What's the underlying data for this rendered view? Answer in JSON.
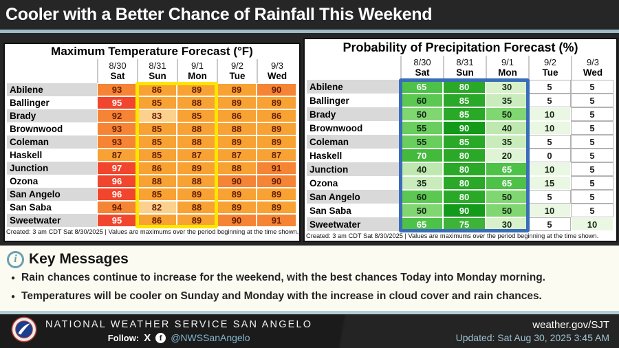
{
  "page_title": "Cooler with a Better Chance of Rainfall This Weekend",
  "chart_data": [
    {
      "type": "table",
      "id": "temp",
      "title": "Maximum Temperature Forecast (°F)",
      "columns": [
        {
          "date": "8/30",
          "day": "Sat"
        },
        {
          "date": "8/31",
          "day": "Sun"
        },
        {
          "date": "9/1",
          "day": "Mon"
        },
        {
          "date": "9/2",
          "day": "Tue"
        },
        {
          "date": "9/3",
          "day": "Wed"
        }
      ],
      "rows": [
        {
          "city": "Abilene",
          "values": [
            93,
            86,
            89,
            89,
            90
          ]
        },
        {
          "city": "Ballinger",
          "values": [
            95,
            85,
            88,
            89,
            89
          ]
        },
        {
          "city": "Brady",
          "values": [
            92,
            83,
            85,
            86,
            86
          ]
        },
        {
          "city": "Brownwood",
          "values": [
            93,
            85,
            88,
            88,
            89
          ]
        },
        {
          "city": "Coleman",
          "values": [
            93,
            85,
            88,
            89,
            89
          ]
        },
        {
          "city": "Haskell",
          "values": [
            87,
            85,
            87,
            87,
            87
          ]
        },
        {
          "city": "Junction",
          "values": [
            97,
            86,
            89,
            88,
            91
          ]
        },
        {
          "city": "Ozona",
          "values": [
            96,
            88,
            88,
            90,
            90
          ]
        },
        {
          "city": "San Angelo",
          "values": [
            96,
            85,
            89,
            89,
            89
          ]
        },
        {
          "city": "San Saba",
          "values": [
            94,
            82,
            88,
            89,
            89
          ]
        },
        {
          "city": "Sweetwater",
          "values": [
            95,
            86,
            89,
            90,
            91
          ]
        }
      ],
      "footnote": "Created: 3 am CDT Sat 8/30/2025  |  Values are maximums over the period beginning at the time shown.",
      "scale": "temp",
      "highlight": {
        "color": "#ffe500",
        "columns": [
          "Sun",
          "Mon"
        ]
      }
    },
    {
      "type": "table",
      "id": "pop",
      "title": "Probability of Precipitation Forecast (%)",
      "columns": [
        {
          "date": "8/30",
          "day": "Sat"
        },
        {
          "date": "8/31",
          "day": "Sun"
        },
        {
          "date": "9/1",
          "day": "Mon"
        },
        {
          "date": "9/2",
          "day": "Tue"
        },
        {
          "date": "9/3",
          "day": "Wed"
        }
      ],
      "rows": [
        {
          "city": "Abilene",
          "values": [
            65,
            80,
            30,
            5,
            5
          ]
        },
        {
          "city": "Ballinger",
          "values": [
            60,
            85,
            35,
            5,
            5
          ]
        },
        {
          "city": "Brady",
          "values": [
            50,
            85,
            50,
            10,
            5
          ]
        },
        {
          "city": "Brownwood",
          "values": [
            55,
            90,
            40,
            10,
            5
          ]
        },
        {
          "city": "Coleman",
          "values": [
            55,
            85,
            35,
            5,
            5
          ]
        },
        {
          "city": "Haskell",
          "values": [
            70,
            80,
            20,
            0,
            5
          ]
        },
        {
          "city": "Junction",
          "values": [
            40,
            80,
            65,
            10,
            5
          ]
        },
        {
          "city": "Ozona",
          "values": [
            35,
            80,
            65,
            15,
            5
          ]
        },
        {
          "city": "San Angelo",
          "values": [
            60,
            80,
            50,
            5,
            5
          ]
        },
        {
          "city": "San Saba",
          "values": [
            50,
            90,
            50,
            10,
            5
          ]
        },
        {
          "city": "Sweetwater",
          "values": [
            65,
            75,
            30,
            5,
            10
          ]
        }
      ],
      "footnote": "Created: 3 am CDT Sat 8/30/2025  |  Values are maximums over the period beginning at the time shown.",
      "scale": "pop",
      "highlight": {
        "color": "#3a6db8",
        "columns": [
          "Sat",
          "Sun",
          "Mon"
        ]
      }
    }
  ],
  "scales": {
    "temp": [
      {
        "min": 95,
        "bg": "#f2452d",
        "text": "#ffffff"
      },
      {
        "min": 90,
        "bg": "#f58434",
        "text": "#641e02"
      },
      {
        "min": 84,
        "bg": "#f8a233",
        "text": "#641e02"
      },
      {
        "min": 0,
        "bg": "#fcd08d",
        "text": "#641e02"
      }
    ],
    "pop": [
      {
        "min": 90,
        "bg": "#149a1a",
        "text": "#ffffff"
      },
      {
        "min": 80,
        "bg": "#2aa827",
        "text": "#ffffff"
      },
      {
        "min": 75,
        "bg": "#3db338",
        "text": "#ffffff"
      },
      {
        "min": 70,
        "bg": "#44ba3d",
        "text": "#ffffff"
      },
      {
        "min": 65,
        "bg": "#4ec148",
        "text": "#ffffff"
      },
      {
        "min": 60,
        "bg": "#5bc852",
        "text": "#142814"
      },
      {
        "min": 55,
        "bg": "#6ace5f",
        "text": "#142814"
      },
      {
        "min": 50,
        "bg": "#80d671",
        "text": "#142814"
      },
      {
        "min": 40,
        "bg": "#bfe8b0",
        "text": "#142814"
      },
      {
        "min": 35,
        "bg": "#caecbd",
        "text": "#142814"
      },
      {
        "min": 30,
        "bg": "#d8f1cb",
        "text": "#142814"
      },
      {
        "min": 20,
        "bg": "#dff3d5",
        "text": "#142814"
      },
      {
        "min": 10,
        "bg": "#eaf7e2",
        "text": "#142814"
      },
      {
        "min": 0,
        "bg": "#ffffff",
        "text": "#1a1a1a"
      }
    ]
  },
  "key_messages": {
    "heading": "Key Messages",
    "bullets": [
      "Rain chances continue to increase for the weekend, with the best chances Today into Monday morning.",
      "Temperatures will be cooler on Sunday and Monday with the increase in cloud cover and rain chances."
    ]
  },
  "icons": {
    "info": "i",
    "x": "X",
    "facebook": "f",
    "bullet": "●"
  },
  "footer": {
    "org": "NATIONAL WEATHER SERVICE SAN ANGELO",
    "follow_label": "Follow:",
    "handle": "@NWSSanAngelo",
    "site": "weather.gov/SJT",
    "updated": "Updated: Sat Aug 30, 2025 3:45 AM"
  }
}
